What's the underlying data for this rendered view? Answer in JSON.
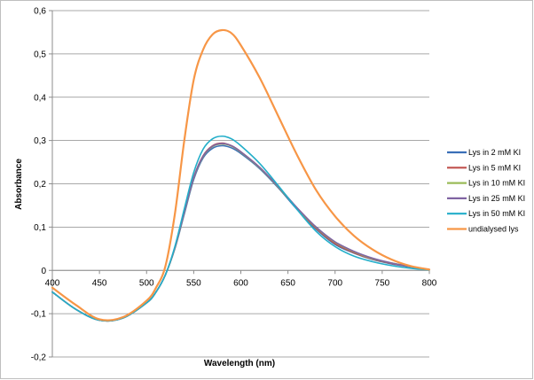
{
  "chart_data": {
    "type": "line",
    "title": "",
    "xlabel": "Wavelength (nm)",
    "ylabel": "Absorbance",
    "xlim": [
      400,
      800
    ],
    "ylim": [
      -0.2,
      0.6
    ],
    "xticks": [
      400,
      450,
      500,
      550,
      600,
      650,
      700,
      750,
      800
    ],
    "xtick_labels": [
      "400",
      "450",
      "500",
      "550",
      "600",
      "650",
      "700",
      "750",
      "800"
    ],
    "yticks": [
      -0.2,
      -0.1,
      0,
      0.1,
      0.2,
      0.3,
      0.4,
      0.5,
      0.6
    ],
    "ytick_labels": [
      "-0,2",
      "-0,1",
      "0",
      "0,1",
      "0,2",
      "0,3",
      "0,4",
      "0,5",
      "0,6"
    ],
    "grid": "horizontal",
    "legend_position": "right",
    "x": [
      400,
      425,
      450,
      475,
      500,
      510,
      520,
      530,
      540,
      550,
      560,
      570,
      580,
      590,
      600,
      620,
      640,
      660,
      680,
      700,
      720,
      740,
      760,
      780,
      800
    ],
    "series": [
      {
        "name": "Lys in 2 mM KI",
        "color": "#3a6fb7",
        "values": [
          -0.05,
          -0.09,
          -0.115,
          -0.11,
          -0.075,
          -0.05,
          -0.01,
          0.05,
          0.13,
          0.21,
          0.26,
          0.282,
          0.288,
          0.283,
          0.27,
          0.235,
          0.19,
          0.14,
          0.095,
          0.06,
          0.04,
          0.025,
          0.015,
          0.008,
          0.002
        ]
      },
      {
        "name": "Lys in 5 mM KI",
        "color": "#c0504d",
        "values": [
          -0.05,
          -0.09,
          -0.115,
          -0.11,
          -0.075,
          -0.05,
          -0.01,
          0.052,
          0.135,
          0.215,
          0.265,
          0.288,
          0.294,
          0.288,
          0.274,
          0.238,
          0.192,
          0.142,
          0.097,
          0.062,
          0.041,
          0.026,
          0.016,
          0.009,
          0.002
        ]
      },
      {
        "name": "Lys in 10 mM KI",
        "color": "#9bbb59",
        "values": [
          -0.05,
          -0.09,
          -0.115,
          -0.11,
          -0.075,
          -0.05,
          -0.01,
          0.051,
          0.133,
          0.213,
          0.263,
          0.286,
          0.292,
          0.287,
          0.273,
          0.237,
          0.192,
          0.143,
          0.099,
          0.065,
          0.043,
          0.027,
          0.017,
          0.009,
          0.002
        ]
      },
      {
        "name": "Lys in 25 mM KI",
        "color": "#8064a2",
        "values": [
          -0.05,
          -0.09,
          -0.115,
          -0.11,
          -0.075,
          -0.05,
          -0.01,
          0.052,
          0.134,
          0.214,
          0.264,
          0.287,
          0.293,
          0.288,
          0.274,
          0.238,
          0.193,
          0.144,
          0.1,
          0.066,
          0.044,
          0.028,
          0.017,
          0.009,
          0.002
        ]
      },
      {
        "name": "Lys in 50 mM KI",
        "color": "#23aec9",
        "values": [
          -0.05,
          -0.09,
          -0.115,
          -0.11,
          -0.075,
          -0.05,
          -0.01,
          0.055,
          0.142,
          0.226,
          0.28,
          0.304,
          0.31,
          0.304,
          0.288,
          0.247,
          0.195,
          0.14,
          0.09,
          0.055,
          0.033,
          0.02,
          0.011,
          0.005,
          0.001
        ]
      },
      {
        "name": "undialysed lys",
        "color": "#f79646",
        "values": [
          -0.04,
          -0.08,
          -0.113,
          -0.108,
          -0.07,
          -0.04,
          0.01,
          0.13,
          0.3,
          0.44,
          0.51,
          0.545,
          0.555,
          0.548,
          0.52,
          0.445,
          0.355,
          0.265,
          0.185,
          0.125,
          0.08,
          0.048,
          0.025,
          0.01,
          0.002
        ]
      }
    ]
  }
}
